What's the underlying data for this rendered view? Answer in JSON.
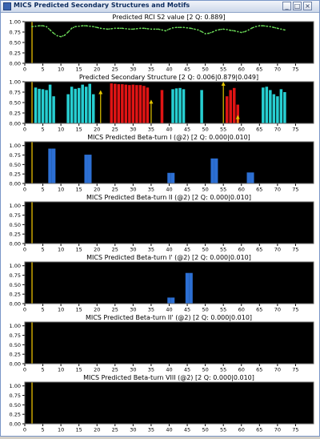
{
  "window": {
    "title": "MICS Predicted Secondary Structures and Motifs",
    "buttons": [
      "_",
      "□",
      "×"
    ]
  },
  "colors": {
    "plot_bg": "#000000",
    "axis": "#cccccc",
    "marker_line": "#c8a400",
    "rci": "#6ee05a",
    "helix": "#e01414",
    "strand": "#27cfd2",
    "beta": "#2c6fd3",
    "arrow": "#e5c600"
  },
  "chart_data": [
    {
      "type": "line",
      "title": "Predicted RCI S2 value [2 Q: 0.889]",
      "xlim": [
        0,
        80
      ],
      "ylim": [
        0,
        1
      ],
      "xticks": [
        0,
        5,
        10,
        15,
        20,
        25,
        30,
        35,
        40,
        45,
        50,
        55,
        60,
        65,
        70,
        75
      ],
      "yticks": [
        "0.00",
        "0.25",
        "0.50",
        "0.75",
        "1.00"
      ],
      "marker_x": 2,
      "x": [
        2,
        3,
        4,
        5,
        6,
        7,
        8,
        9,
        10,
        11,
        12,
        13,
        14,
        15,
        16,
        17,
        18,
        19,
        20,
        21,
        22,
        23,
        24,
        25,
        26,
        27,
        28,
        29,
        30,
        31,
        32,
        33,
        34,
        35,
        36,
        37,
        38,
        39,
        40,
        41,
        42,
        43,
        44,
        45,
        46,
        47,
        48,
        49,
        50,
        51,
        52,
        53,
        54,
        55,
        56,
        57,
        58,
        59,
        60,
        61,
        62,
        63,
        64,
        65,
        66,
        67,
        68,
        69,
        70,
        71,
        72
      ],
      "y": [
        0.88,
        0.89,
        0.9,
        0.9,
        0.88,
        0.8,
        0.72,
        0.66,
        0.64,
        0.67,
        0.75,
        0.84,
        0.88,
        0.89,
        0.9,
        0.9,
        0.89,
        0.88,
        0.86,
        0.84,
        0.83,
        0.82,
        0.83,
        0.84,
        0.84,
        0.84,
        0.83,
        0.82,
        0.82,
        0.83,
        0.84,
        0.84,
        0.83,
        0.82,
        0.82,
        0.82,
        0.8,
        0.78,
        0.82,
        0.85,
        0.86,
        0.86,
        0.86,
        0.85,
        0.84,
        0.82,
        0.8,
        0.76,
        0.71,
        0.72,
        0.75,
        0.79,
        0.81,
        0.82,
        0.81,
        0.79,
        0.78,
        0.76,
        0.74,
        0.76,
        0.8,
        0.85,
        0.88,
        0.9,
        0.9,
        0.89,
        0.88,
        0.86,
        0.84,
        0.82,
        0.8
      ]
    },
    {
      "type": "bar",
      "title": "Predicted Secondary Structure [2 Q: 0.006|0.879|0.049]",
      "xlim": [
        0,
        80
      ],
      "ylim": [
        0,
        1
      ],
      "xticks": [
        0,
        5,
        10,
        15,
        20,
        25,
        30,
        35,
        40,
        45,
        50,
        55,
        60,
        65,
        70,
        75
      ],
      "yticks": [
        "0.00",
        "0.25",
        "0.50",
        "0.75",
        "1.00"
      ],
      "marker_x": 2,
      "bars": [
        {
          "x": 3,
          "y": 0.86,
          "kind": "strand"
        },
        {
          "x": 4,
          "y": 0.83,
          "kind": "strand"
        },
        {
          "x": 5,
          "y": 0.82,
          "kind": "strand"
        },
        {
          "x": 6,
          "y": 0.8,
          "kind": "strand"
        },
        {
          "x": 7,
          "y": 0.93,
          "kind": "strand"
        },
        {
          "x": 8,
          "y": 0.65,
          "kind": "strand"
        },
        {
          "x": 12,
          "y": 0.7,
          "kind": "strand"
        },
        {
          "x": 13,
          "y": 0.88,
          "kind": "strand"
        },
        {
          "x": 14,
          "y": 0.83,
          "kind": "strand"
        },
        {
          "x": 15,
          "y": 0.85,
          "kind": "strand"
        },
        {
          "x": 16,
          "y": 0.93,
          "kind": "strand"
        },
        {
          "x": 17,
          "y": 0.88,
          "kind": "strand"
        },
        {
          "x": 18,
          "y": 0.95,
          "kind": "strand"
        },
        {
          "x": 19,
          "y": 0.7,
          "kind": "strand"
        },
        {
          "x": 24,
          "y": 0.96,
          "kind": "helix"
        },
        {
          "x": 25,
          "y": 0.95,
          "kind": "helix"
        },
        {
          "x": 26,
          "y": 0.94,
          "kind": "helix"
        },
        {
          "x": 27,
          "y": 0.94,
          "kind": "helix"
        },
        {
          "x": 28,
          "y": 0.93,
          "kind": "helix"
        },
        {
          "x": 29,
          "y": 0.92,
          "kind": "helix"
        },
        {
          "x": 30,
          "y": 0.93,
          "kind": "helix"
        },
        {
          "x": 31,
          "y": 0.92,
          "kind": "helix"
        },
        {
          "x": 32,
          "y": 0.92,
          "kind": "helix"
        },
        {
          "x": 33,
          "y": 0.9,
          "kind": "helix"
        },
        {
          "x": 34,
          "y": 0.86,
          "kind": "helix"
        },
        {
          "x": 38,
          "y": 0.8,
          "kind": "helix"
        },
        {
          "x": 41,
          "y": 0.82,
          "kind": "strand"
        },
        {
          "x": 42,
          "y": 0.84,
          "kind": "strand"
        },
        {
          "x": 43,
          "y": 0.85,
          "kind": "strand"
        },
        {
          "x": 44,
          "y": 0.82,
          "kind": "strand"
        },
        {
          "x": 49,
          "y": 0.8,
          "kind": "strand"
        },
        {
          "x": 56,
          "y": 0.65,
          "kind": "helix"
        },
        {
          "x": 57,
          "y": 0.8,
          "kind": "helix"
        },
        {
          "x": 58,
          "y": 0.85,
          "kind": "helix"
        },
        {
          "x": 59,
          "y": 0.45,
          "kind": "helix"
        },
        {
          "x": 66,
          "y": 0.86,
          "kind": "strand"
        },
        {
          "x": 67,
          "y": 0.88,
          "kind": "strand"
        },
        {
          "x": 68,
          "y": 0.8,
          "kind": "strand"
        },
        {
          "x": 69,
          "y": 0.7,
          "kind": "strand"
        },
        {
          "x": 70,
          "y": 0.65,
          "kind": "strand"
        },
        {
          "x": 71,
          "y": 0.82,
          "kind": "strand"
        },
        {
          "x": 72,
          "y": 0.75,
          "kind": "strand"
        }
      ],
      "arrows": [
        {
          "x": 21,
          "y0": 0.0,
          "y1": 0.78
        },
        {
          "x": 35,
          "y0": 0.0,
          "y1": 0.55
        },
        {
          "x": 55,
          "y0": 0.0,
          "y1": 0.98
        },
        {
          "x": 59,
          "y0": 0.0,
          "y1": 0.18
        }
      ]
    },
    {
      "type": "bar",
      "title": "MICS Predicted Beta-turn I (@2) [2 Q: 0.000|0.010]",
      "xlim": [
        0,
        80
      ],
      "ylim": [
        0,
        1.1
      ],
      "xticks": [
        0,
        5,
        10,
        15,
        20,
        25,
        30,
        35,
        40,
        45,
        50,
        55,
        60,
        65,
        70,
        75
      ],
      "yticks": [
        "0.00",
        "0.25",
        "0.50",
        "0.75",
        "1.00"
      ],
      "marker_x": 2,
      "bars": [
        {
          "x": 7,
          "y": 0.92
        },
        {
          "x": 8,
          "y": 0.92
        },
        {
          "x": 17,
          "y": 0.76
        },
        {
          "x": 18,
          "y": 0.76
        },
        {
          "x": 40,
          "y": 0.28
        },
        {
          "x": 41,
          "y": 0.28
        },
        {
          "x": 52,
          "y": 0.66
        },
        {
          "x": 53,
          "y": 0.66
        },
        {
          "x": 62,
          "y": 0.29
        },
        {
          "x": 63,
          "y": 0.29
        }
      ]
    },
    {
      "type": "bar",
      "title": "MICS Predicted Beta-turn II (@2) [2 Q: 0.000|0.010]",
      "xlim": [
        0,
        80
      ],
      "ylim": [
        0,
        1.1
      ],
      "xticks": [
        0,
        5,
        10,
        15,
        20,
        25,
        30,
        35,
        40,
        45,
        50,
        55,
        60,
        65,
        70,
        75
      ],
      "yticks": [
        "0.00",
        "0.25",
        "0.50",
        "0.75",
        "1.00"
      ],
      "marker_x": 2,
      "bars": []
    },
    {
      "type": "bar",
      "title": "MICS Predicted Beta-turn I' (@2) [2 Q: 0.000|0.010]",
      "xlim": [
        0,
        80
      ],
      "ylim": [
        0,
        1.1
      ],
      "xticks": [
        0,
        5,
        10,
        15,
        20,
        25,
        30,
        35,
        40,
        45,
        50,
        55,
        60,
        65,
        70,
        75
      ],
      "yticks": [
        "0.00",
        "0.25",
        "0.50",
        "0.75",
        "1.00"
      ],
      "marker_x": 2,
      "bars": [
        {
          "x": 40,
          "y": 0.16
        },
        {
          "x": 41,
          "y": 0.16
        },
        {
          "x": 45,
          "y": 0.81
        },
        {
          "x": 46,
          "y": 0.81
        }
      ]
    },
    {
      "type": "bar",
      "title": "MICS Predicted Beta-turn II' (@2) [2 Q: 0.000|0.010]",
      "xlim": [
        0,
        80
      ],
      "ylim": [
        0,
        1.1
      ],
      "xticks": [
        0,
        5,
        10,
        15,
        20,
        25,
        30,
        35,
        40,
        45,
        50,
        55,
        60,
        65,
        70,
        75
      ],
      "yticks": [
        "0.00",
        "0.25",
        "0.50",
        "0.75",
        "1.00"
      ],
      "marker_x": 2,
      "bars": []
    },
    {
      "type": "bar",
      "title": "MICS Predicted Beta-turn VIII (@2) [2 Q: 0.000|0.010]",
      "xlim": [
        0,
        80
      ],
      "ylim": [
        0,
        1.1
      ],
      "xticks": [
        0,
        5,
        10,
        15,
        20,
        25,
        30,
        35,
        40,
        45,
        50,
        55,
        60,
        65,
        70,
        75
      ],
      "yticks": [
        "0.00",
        "0.25",
        "0.50",
        "0.75",
        "1.00"
      ],
      "marker_x": 2,
      "bars": []
    }
  ]
}
